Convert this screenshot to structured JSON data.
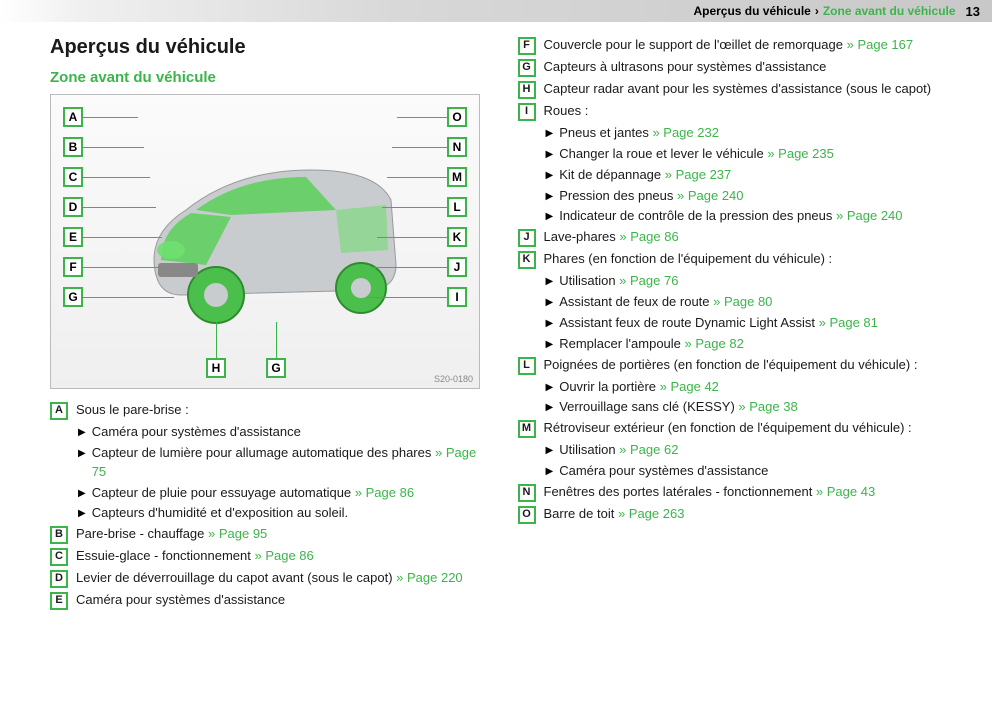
{
  "header": {
    "crumb1": "Aperçus du véhicule",
    "sep": "›",
    "crumb2": "Zone avant du véhicule",
    "pagenum": "13"
  },
  "titles": {
    "main": "Aperçus du véhicule",
    "section": "Zone avant du véhicule"
  },
  "figure": {
    "img_id": "S20-0180",
    "callouts_left": [
      "A",
      "B",
      "C",
      "D",
      "E",
      "F",
      "G"
    ],
    "callouts_right": [
      "O",
      "N",
      "M",
      "L",
      "K",
      "J",
      "I"
    ],
    "callouts_bottom": [
      "H",
      "G"
    ],
    "colors": {
      "accent": "#3bb54a",
      "car_body": "#c9cccf",
      "car_highlight": "#5bcf5b"
    }
  },
  "left_items": [
    {
      "badge": "A",
      "text": "Sous le pare-brise :",
      "subs": [
        {
          "t": "Caméra pour systèmes d'assistance"
        },
        {
          "t": "Capteur de lumière pour allumage automatique des phares",
          "ref": " » Page 75"
        },
        {
          "t": "Capteur de pluie pour essuyage automatique",
          "ref": " » Page 86"
        },
        {
          "t": "Capteurs d'humidité et d'exposition au soleil."
        }
      ]
    },
    {
      "badge": "B",
      "text": "Pare-brise - chauffage",
      "ref": " » Page 95"
    },
    {
      "badge": "C",
      "text": "Essuie-glace - fonctionnement",
      "ref": " » Page 86"
    },
    {
      "badge": "D",
      "text": "Levier de déverrouillage du capot avant (sous le capot)",
      "ref": " » Page 220"
    },
    {
      "badge": "E",
      "text": "Caméra pour systèmes d'assistance"
    }
  ],
  "right_items": [
    {
      "badge": "F",
      "text": "Couvercle pour le support de l'œillet de remorquage",
      "ref": " » Page 167"
    },
    {
      "badge": "G",
      "text": "Capteurs à ultrasons pour systèmes d'assistance"
    },
    {
      "badge": "H",
      "text": "Capteur radar avant pour les systèmes d'assistance (sous le capot)"
    },
    {
      "badge": "I",
      "text": "Roues :",
      "subs": [
        {
          "t": "Pneus et jantes",
          "ref": " » Page 232"
        },
        {
          "t": "Changer la roue et lever le véhicule",
          "ref": " » Page 235"
        },
        {
          "t": "Kit de dépannage",
          "ref": " » Page 237"
        },
        {
          "t": "Pression des pneus",
          "ref": " » Page 240"
        },
        {
          "t": "Indicateur de contrôle de la pression des pneus",
          "ref": " » Page 240"
        }
      ]
    },
    {
      "badge": "J",
      "text": "Lave-phares",
      "ref": " » Page 86"
    },
    {
      "badge": "K",
      "text": "Phares (en fonction de l'équipement du véhicule) :",
      "subs": [
        {
          "t": "Utilisation",
          "ref": " » Page 76"
        },
        {
          "t": "Assistant de feux de route",
          "ref": " » Page 80"
        },
        {
          "t": "Assistant feux de route Dynamic Light Assist",
          "ref": " » Page 81"
        },
        {
          "t": "Remplacer l'ampoule",
          "ref": " » Page 82"
        }
      ]
    },
    {
      "badge": "L",
      "text": "Poignées de portières (en fonction de l'équipement du véhicule) :",
      "subs": [
        {
          "t": "Ouvrir la portière",
          "ref": " » Page 42"
        },
        {
          "t": "Verrouillage sans clé (KESSY)",
          "ref": " » Page 38"
        }
      ]
    },
    {
      "badge": "M",
      "text": "Rétroviseur extérieur (en fonction de l'équipement du véhicule) :",
      "subs": [
        {
          "t": "Utilisation",
          "ref": " » Page 62"
        },
        {
          "t": "Caméra pour systèmes d'assistance"
        }
      ]
    },
    {
      "badge": "N",
      "text": "Fenêtres des portes latérales - fonctionnement",
      "ref": " » Page 43"
    },
    {
      "badge": "O",
      "text": "Barre de toit",
      "ref": " » Page 263"
    }
  ]
}
